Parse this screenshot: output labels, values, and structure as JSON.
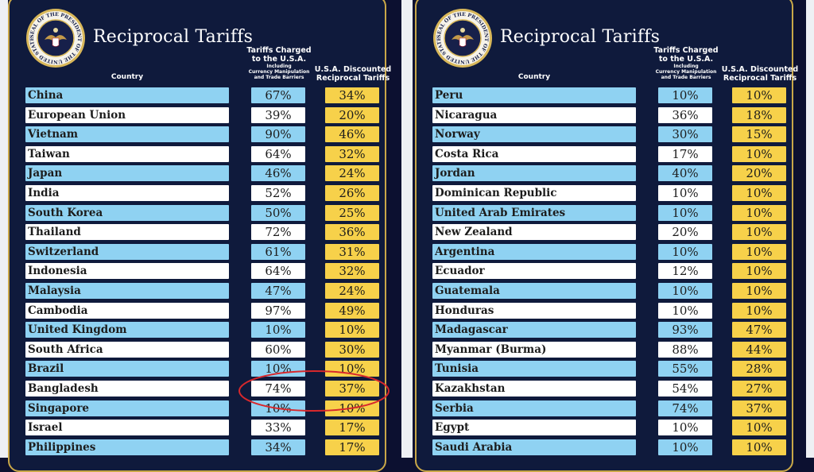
{
  "title": "Reciprocal Tariffs",
  "seal_text": "SEAL OF THE PRESIDENT OF THE UNITED STATES",
  "headers": {
    "country": "Country",
    "charged_line1": "Tariffs Charged",
    "charged_line2": "to the U.S.A.",
    "charged_sub1": "Including",
    "charged_sub2": "Currency Manipulation",
    "charged_sub3": "and Trade Barriers",
    "discounted_line1": "U.S.A. Discounted",
    "discounted_line2": "Reciprocal Tariffs"
  },
  "colors": {
    "background": "#0f1a3c",
    "border": "#c9a748",
    "row_blue": "#8fd2f2",
    "row_white": "#ffffff",
    "reciprocal_yellow": "#f7d14a",
    "annotation": "#d8282c"
  },
  "annotation": {
    "shape": "ellipse",
    "highlights": "Bangladesh"
  },
  "chart_data": {
    "type": "table",
    "title": "Reciprocal Tariffs",
    "columns": [
      "Country",
      "Tariffs Charged to the U.S.A.",
      "U.S.A. Discounted Reciprocal Tariffs"
    ],
    "tables": [
      {
        "rows": [
          {
            "country": "China",
            "charged": "67%",
            "reciprocal": "34%"
          },
          {
            "country": "European Union",
            "charged": "39%",
            "reciprocal": "20%"
          },
          {
            "country": "Vietnam",
            "charged": "90%",
            "reciprocal": "46%"
          },
          {
            "country": "Taiwan",
            "charged": "64%",
            "reciprocal": "32%"
          },
          {
            "country": "Japan",
            "charged": "46%",
            "reciprocal": "24%"
          },
          {
            "country": "India",
            "charged": "52%",
            "reciprocal": "26%"
          },
          {
            "country": "South Korea",
            "charged": "50%",
            "reciprocal": "25%"
          },
          {
            "country": "Thailand",
            "charged": "72%",
            "reciprocal": "36%"
          },
          {
            "country": "Switzerland",
            "charged": "61%",
            "reciprocal": "31%"
          },
          {
            "country": "Indonesia",
            "charged": "64%",
            "reciprocal": "32%"
          },
          {
            "country": "Malaysia",
            "charged": "47%",
            "reciprocal": "24%"
          },
          {
            "country": "Cambodia",
            "charged": "97%",
            "reciprocal": "49%"
          },
          {
            "country": "United Kingdom",
            "charged": "10%",
            "reciprocal": "10%"
          },
          {
            "country": "South Africa",
            "charged": "60%",
            "reciprocal": "30%"
          },
          {
            "country": "Brazil",
            "charged": "10%",
            "reciprocal": "10%"
          },
          {
            "country": "Bangladesh",
            "charged": "74%",
            "reciprocal": "37%"
          },
          {
            "country": "Singapore",
            "charged": "10%",
            "reciprocal": "10%"
          },
          {
            "country": "Israel",
            "charged": "33%",
            "reciprocal": "17%"
          },
          {
            "country": "Philippines",
            "charged": "34%",
            "reciprocal": "17%"
          }
        ]
      },
      {
        "rows": [
          {
            "country": "Peru",
            "charged": "10%",
            "reciprocal": "10%"
          },
          {
            "country": "Nicaragua",
            "charged": "36%",
            "reciprocal": "18%"
          },
          {
            "country": "Norway",
            "charged": "30%",
            "reciprocal": "15%"
          },
          {
            "country": "Costa Rica",
            "charged": "17%",
            "reciprocal": "10%"
          },
          {
            "country": "Jordan",
            "charged": "40%",
            "reciprocal": "20%"
          },
          {
            "country": "Dominican Republic",
            "charged": "10%",
            "reciprocal": "10%"
          },
          {
            "country": "United Arab Emirates",
            "charged": "10%",
            "reciprocal": "10%"
          },
          {
            "country": "New Zealand",
            "charged": "20%",
            "reciprocal": "10%"
          },
          {
            "country": "Argentina",
            "charged": "10%",
            "reciprocal": "10%"
          },
          {
            "country": "Ecuador",
            "charged": "12%",
            "reciprocal": "10%"
          },
          {
            "country": "Guatemala",
            "charged": "10%",
            "reciprocal": "10%"
          },
          {
            "country": "Honduras",
            "charged": "10%",
            "reciprocal": "10%"
          },
          {
            "country": "Madagascar",
            "charged": "93%",
            "reciprocal": "47%"
          },
          {
            "country": "Myanmar (Burma)",
            "charged": "88%",
            "reciprocal": "44%"
          },
          {
            "country": "Tunisia",
            "charged": "55%",
            "reciprocal": "28%"
          },
          {
            "country": "Kazakhstan",
            "charged": "54%",
            "reciprocal": "27%"
          },
          {
            "country": "Serbia",
            "charged": "74%",
            "reciprocal": "37%"
          },
          {
            "country": "Egypt",
            "charged": "10%",
            "reciprocal": "10%"
          },
          {
            "country": "Saudi Arabia",
            "charged": "10%",
            "reciprocal": "10%"
          }
        ]
      }
    ]
  }
}
